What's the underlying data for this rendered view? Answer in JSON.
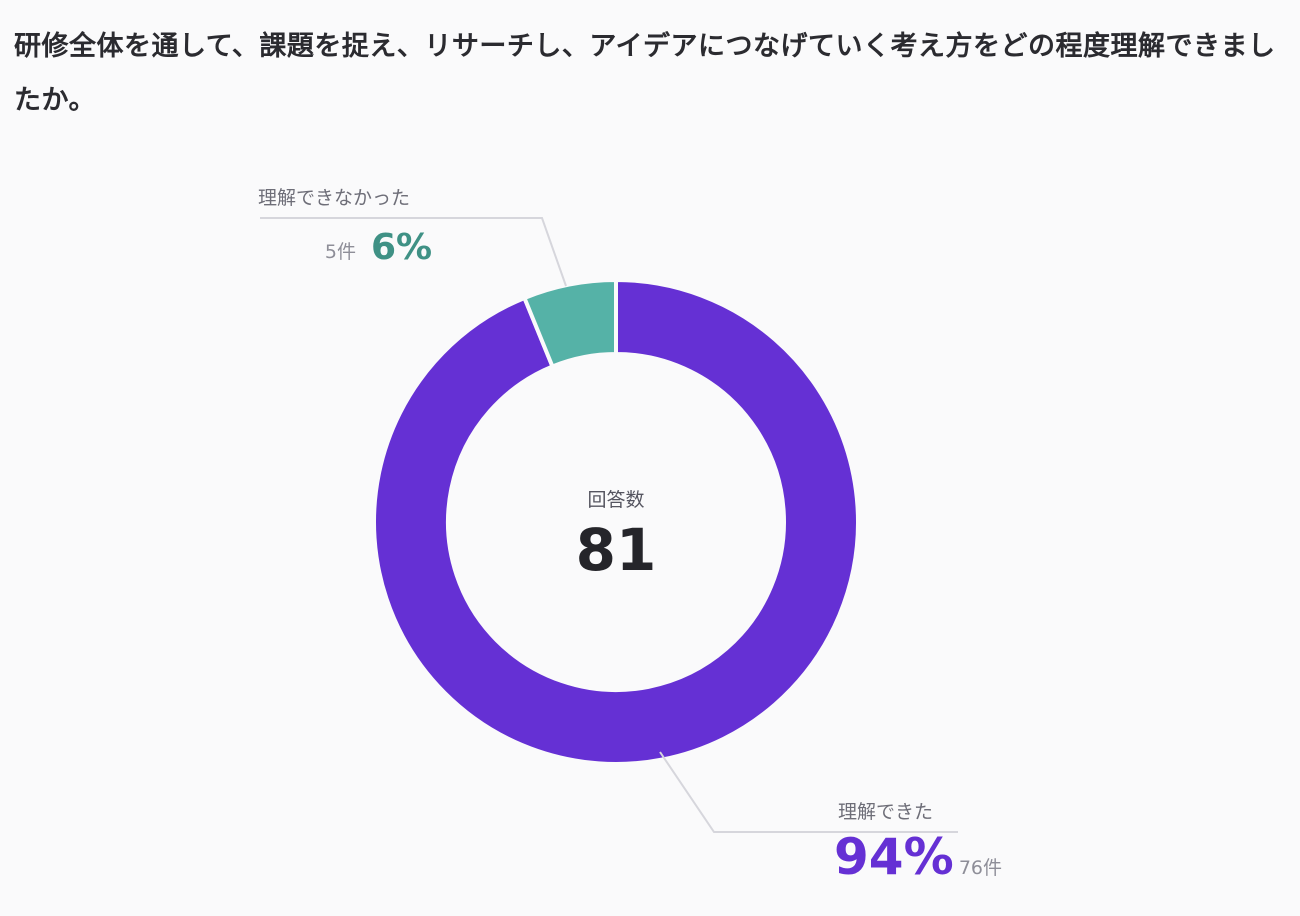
{
  "question": "研修全体を通して、課題を捉え、リサーチし、アイデアにつなげていく考え方をどの程度理解できましたか。",
  "chart_data": {
    "type": "pie",
    "variant": "donut",
    "center_label": "回答数",
    "total": 81,
    "slices": [
      {
        "label": "理解できた",
        "count": 76,
        "count_text": "76件",
        "percent": 94,
        "percent_text": "94%",
        "color": "#6530d4"
      },
      {
        "label": "理解できなかった",
        "count": 5,
        "count_text": "5件",
        "percent": 6,
        "percent_text": "6%",
        "color": "#55b2a7"
      }
    ],
    "label_colors": {
      "理解できた": "#6530d4",
      "理解できなかった": "#3f9185"
    }
  }
}
